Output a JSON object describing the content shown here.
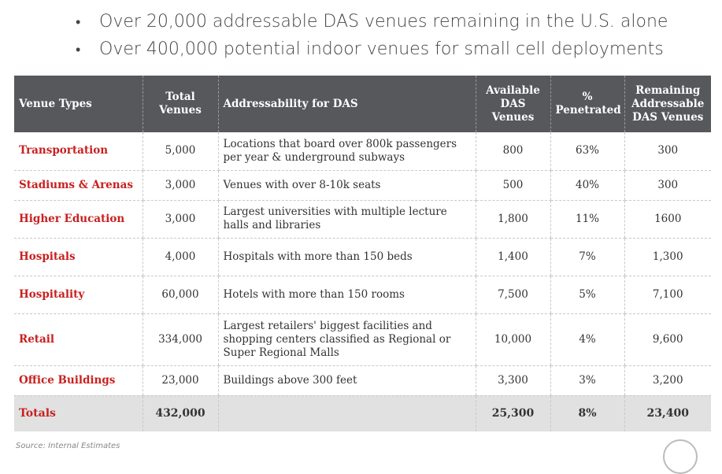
{
  "bullets": [
    "Over 20,000 addressable DAS venues remaining in the U.S. alone",
    "Over 400,000 potential indoor venues for small cell deployments"
  ],
  "table": {
    "headers": {
      "venue_types": "Venue Types",
      "total_venues": "Total Venues",
      "addressability": "Addressability for DAS",
      "available": "Available DAS Venues",
      "penetrated": "% Penetrated",
      "remaining": "Remaining Addressable DAS Venues"
    },
    "rows": [
      {
        "type": "Transportation",
        "total": "5,000",
        "desc": "Locations that board over 800k passengers per year & underground subways",
        "available": "800",
        "penetrated": "63%",
        "remaining": "300"
      },
      {
        "type": "Stadiums & Arenas",
        "total": "3,000",
        "desc": "Venues with over 8-10k seats",
        "available": "500",
        "penetrated": "40%",
        "remaining": "300"
      },
      {
        "type": "Higher Education",
        "total": "3,000",
        "desc": "Largest universities with multiple lecture halls and libraries",
        "available": "1,800",
        "penetrated": "11%",
        "remaining": "1600"
      },
      {
        "type": "Hospitals",
        "total": "4,000",
        "desc": "Hospitals with more than 150 beds",
        "available": "1,400",
        "penetrated": "7%",
        "remaining": "1,300"
      },
      {
        "type": "Hospitality",
        "total": "60,000",
        "desc": "Hotels with more than 150 rooms",
        "available": "7,500",
        "penetrated": "5%",
        "remaining": "7,100"
      },
      {
        "type": "Retail",
        "total": "334,000",
        "desc": "Largest retailers' biggest facilities and shopping centers classified as Regional or Super Regional Malls",
        "available": "10,000",
        "penetrated": "4%",
        "remaining": "9,600"
      },
      {
        "type": "Office Buildings",
        "total": "23,000",
        "desc": "Buildings above 300 feet",
        "available": "3,300",
        "penetrated": "3%",
        "remaining": "3,200"
      }
    ],
    "totals": {
      "label": "Totals",
      "total": "432,000",
      "desc": "",
      "available": "25,300",
      "penetrated": "8%",
      "remaining": "23,400"
    }
  },
  "source": "Source: Internal Estimates"
}
